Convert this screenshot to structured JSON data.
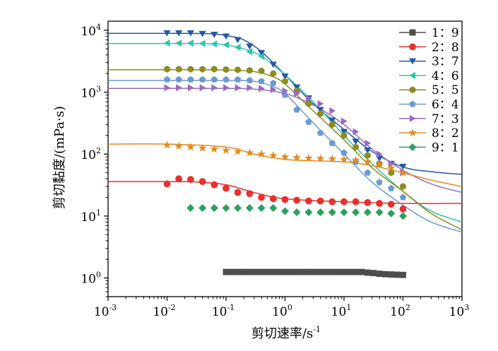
{
  "chart_data": {
    "type": "scatter",
    "xlabel": "剪切速率/s",
    "xlabel_sup": "-1",
    "ylabel": "剪切黏度/(mPa·s)",
    "x_scale": "log",
    "y_scale": "log",
    "xlim": [
      0.001,
      1000
    ],
    "ylim": [
      0.5,
      14000
    ],
    "x_ticks": [
      {
        "value": 0.001,
        "base": "10",
        "exp": "-3"
      },
      {
        "value": 0.01,
        "base": "10",
        "exp": "-2"
      },
      {
        "value": 0.1,
        "base": "10",
        "exp": "-1"
      },
      {
        "value": 1,
        "base": "10",
        "exp": "0"
      },
      {
        "value": 10,
        "base": "10",
        "exp": "1"
      },
      {
        "value": 100,
        "base": "10",
        "exp": "2"
      },
      {
        "value": 1000,
        "base": "10",
        "exp": "3"
      }
    ],
    "y_ticks": [
      {
        "value": 1,
        "base": "10",
        "exp": "0"
      },
      {
        "value": 10,
        "base": "10",
        "exp": "1"
      },
      {
        "value": 100,
        "base": "10",
        "exp": "2"
      },
      {
        "value": 1000,
        "base": "10",
        "exp": "3"
      },
      {
        "value": 10000,
        "base": "10",
        "exp": "4"
      }
    ],
    "grid": false,
    "legend_position": "top-right",
    "series": [
      {
        "name": "1：9",
        "color": "#4d4d4d",
        "marker": "square",
        "x": [
          0.1,
          0.126,
          0.159,
          0.2,
          0.251,
          0.316,
          0.398,
          0.501,
          0.631,
          0.794,
          1,
          1.26,
          1.59,
          2,
          2.51,
          3.16,
          3.98,
          5.01,
          6.31,
          7.94,
          10,
          12.6,
          15.9,
          20,
          25.1,
          31.6,
          39.8,
          50.1,
          63.1,
          79.4,
          100
        ],
        "y": [
          1.25,
          1.25,
          1.25,
          1.25,
          1.25,
          1.25,
          1.25,
          1.25,
          1.25,
          1.25,
          1.25,
          1.25,
          1.25,
          1.25,
          1.25,
          1.25,
          1.25,
          1.25,
          1.25,
          1.25,
          1.25,
          1.25,
          1.25,
          1.25,
          1.22,
          1.2,
          1.17,
          1.15,
          1.14,
          1.13,
          1.12
        ],
        "fit_x": [],
        "fit_y": []
      },
      {
        "name": "2：8",
        "color": "#e8302c",
        "marker": "circle",
        "x": [
          0.01,
          0.0158,
          0.0251,
          0.0398,
          0.0631,
          0.1,
          0.158,
          0.251,
          0.398,
          0.631,
          1,
          1.58,
          2.51,
          3.98,
          6.31,
          10,
          15.8,
          25.1,
          39.8,
          63.1,
          100
        ],
        "y": [
          33,
          40,
          39,
          36,
          32,
          28,
          24,
          23,
          20,
          19,
          18.5,
          18,
          17.5,
          17.5,
          17,
          17,
          17,
          16.5,
          16,
          15.5,
          13
        ],
        "fit_x": [
          0.001,
          0.01,
          0.03,
          0.1,
          0.3,
          1,
          10,
          100,
          1000
        ],
        "fit_y": [
          36,
          36,
          35.5,
          32,
          24,
          19,
          17,
          16,
          16
        ]
      },
      {
        "name": "3：7",
        "color": "#2458a8",
        "marker": "triangle-down",
        "x": [
          0.01,
          0.0158,
          0.0251,
          0.0398,
          0.0631,
          0.1,
          0.158,
          0.251,
          0.398,
          0.631,
          1,
          1.58,
          2.51,
          3.98,
          6.31,
          10,
          15.8,
          25.1,
          39.8,
          63.1,
          100
        ],
        "y": [
          9000,
          9000,
          9000,
          8800,
          8500,
          8000,
          7000,
          5500,
          4300,
          2800,
          1800,
          1200,
          800,
          520,
          350,
          230,
          160,
          115,
          85,
          70,
          63
        ],
        "fit_x": [
          0.001,
          0.01,
          0.05,
          0.1,
          0.2,
          0.4,
          1,
          3,
          10,
          30,
          100,
          300,
          1000
        ],
        "fit_y": [
          8900,
          8900,
          8800,
          8200,
          7000,
          4500,
          1900,
          650,
          250,
          110,
          62,
          52,
          47
        ]
      },
      {
        "name": "4：6",
        "color": "#2fc3ad",
        "marker": "triangle-left",
        "x": [
          0.01,
          0.0158,
          0.0251,
          0.0398,
          0.0631,
          0.1,
          0.158,
          0.251,
          0.398
        ],
        "y": [
          6200,
          6200,
          6200,
          6100,
          6000,
          5800,
          5300,
          4500,
          3800
        ],
        "fit_x": [
          0.001,
          0.01,
          0.05,
          0.1,
          0.2,
          0.4,
          1,
          3,
          10,
          30,
          100,
          300,
          1000
        ],
        "fit_y": [
          6100,
          6100,
          6050,
          5800,
          5000,
          3800,
          1900,
          700,
          200,
          70,
          25,
          12,
          8
        ]
      },
      {
        "name": "5：5",
        "color": "#8c8c1f",
        "marker": "hexagon",
        "x": [
          0.01,
          0.0158,
          0.0251,
          0.0398,
          0.0631,
          0.1,
          0.158,
          0.251,
          0.398,
          0.631,
          1,
          1.58,
          2.51,
          3.98,
          6.31,
          10,
          15.8,
          25.1,
          39.8,
          63.1,
          100
        ],
        "y": [
          2350,
          2350,
          2350,
          2350,
          2350,
          2320,
          2300,
          2250,
          2200,
          2000,
          1500,
          1050,
          650,
          450,
          300,
          200,
          130,
          95,
          70,
          50,
          30
        ],
        "fit_x": [
          0.001,
          0.01,
          0.1,
          0.3,
          0.6,
          1,
          3,
          10,
          30,
          100,
          300,
          1000
        ],
        "fit_y": [
          2300,
          2300,
          2280,
          2150,
          1800,
          1350,
          500,
          170,
          60,
          25,
          11,
          6
        ]
      },
      {
        "name": "6：4",
        "color": "#6a9ad0",
        "marker": "pentagon",
        "x": [
          0.01,
          0.0158,
          0.0251,
          0.0398,
          0.0631,
          0.1,
          0.158,
          0.251,
          0.398,
          0.631,
          1,
          1.58,
          2.51,
          3.98,
          6.31,
          10,
          15.8,
          25.1,
          39.8,
          63.1,
          100
        ],
        "y": [
          1600,
          1600,
          1600,
          1600,
          1600,
          1600,
          1600,
          1550,
          1500,
          1400,
          900,
          520,
          330,
          220,
          150,
          105,
          75,
          50,
          35,
          28,
          20
        ],
        "fit_x": [
          0.001,
          0.01,
          0.1,
          0.3,
          0.6,
          1,
          3,
          10,
          30,
          100,
          300,
          1000
        ],
        "fit_y": [
          1550,
          1550,
          1550,
          1500,
          1250,
          950,
          320,
          100,
          35,
          15,
          8,
          5.5
        ]
      },
      {
        "name": "7：3",
        "color": "#9a6ac0",
        "marker": "triangle-right",
        "x": [
          0.01,
          0.0158,
          0.0251,
          0.0398,
          0.0631,
          0.1,
          0.158,
          0.251,
          0.398,
          0.631,
          1,
          1.58,
          2.51,
          3.98,
          6.31,
          10,
          15.8,
          25.1,
          39.8,
          63.1,
          100
        ],
        "y": [
          1180,
          1180,
          1180,
          1180,
          1180,
          1180,
          1180,
          1180,
          1150,
          1100,
          1050,
          950,
          800,
          650,
          500,
          340,
          230,
          150,
          100,
          70,
          50
        ],
        "fit_x": [
          0.001,
          0.01,
          0.1,
          0.3,
          1,
          3,
          10,
          30,
          100,
          300,
          1000
        ],
        "fit_y": [
          1150,
          1150,
          1150,
          1120,
          950,
          620,
          300,
          120,
          55,
          33,
          24
        ]
      },
      {
        "name": "8：2",
        "color": "#e68a1d",
        "marker": "star",
        "x": [
          0.01,
          0.0158,
          0.0251,
          0.0398,
          0.0631,
          0.1,
          0.158,
          0.251,
          0.398,
          0.631,
          1,
          1.58,
          2.51,
          3.98,
          6.31,
          10,
          15.8,
          25.1,
          39.8,
          63.1,
          100
        ],
        "y": [
          140,
          135,
          130,
          125,
          120,
          115,
          110,
          105,
          100,
          95,
          90,
          88,
          86,
          85,
          84,
          82,
          80,
          75,
          68,
          60,
          50
        ],
        "fit_x": [
          0.001,
          0.01,
          0.1,
          0.3,
          1,
          3,
          10,
          30,
          100,
          300,
          1000
        ],
        "fit_y": [
          145,
          145,
          130,
          100,
          82,
          78,
          75,
          65,
          50,
          38,
          30
        ]
      },
      {
        "name": "9：1",
        "color": "#2ca060",
        "marker": "diamond",
        "x": [
          0.025,
          0.0398,
          0.0631,
          0.1,
          0.158,
          0.251,
          0.398,
          0.631,
          1,
          1.58,
          2.51,
          3.98,
          6.31,
          10,
          15.8,
          25.1,
          39.8,
          63.1,
          100
        ],
        "y": [
          13.5,
          13.5,
          13.5,
          13.5,
          13.5,
          13.5,
          13.5,
          13.5,
          12,
          11.5,
          11.5,
          11.5,
          11.5,
          11.5,
          11.5,
          11.5,
          11.5,
          11,
          10
        ],
        "fit_x": [],
        "fit_y": []
      }
    ]
  }
}
